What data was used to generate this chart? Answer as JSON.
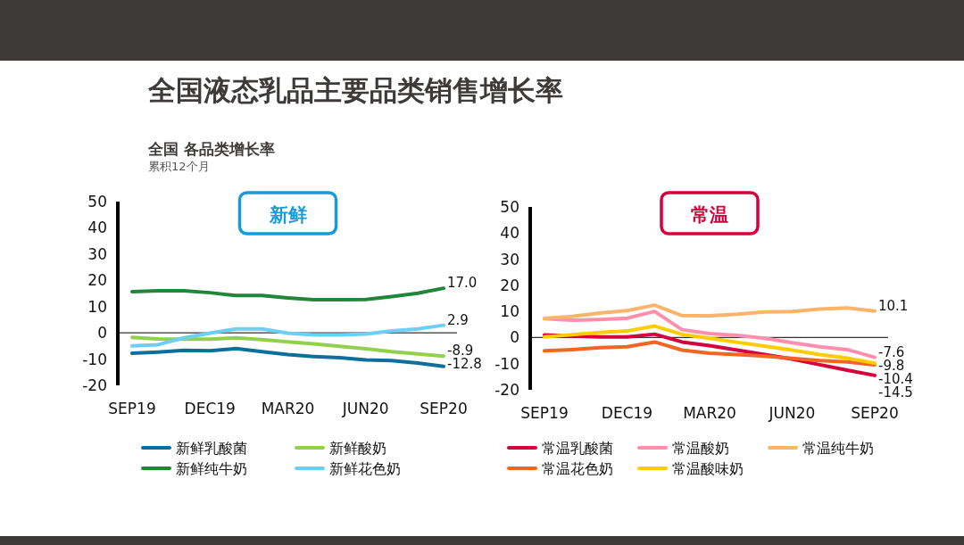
{
  "chart_data": [
    {
      "type": "line",
      "title": "新鲜",
      "categories": [
        "SEP19",
        null,
        null,
        "DEC19",
        null,
        null,
        "MAR20",
        null,
        null,
        "JUN20",
        null,
        null,
        "SEP20"
      ],
      "series": [
        {
          "name": "新鲜乳酸菌",
          "color": "#0e6f9a",
          "values": [
            -7.8,
            -7.3,
            -6.7,
            -6.8,
            -6.0,
            -7.2,
            -8.3,
            -9.0,
            -9.5,
            -10.3,
            -10.6,
            -11.5,
            -12.8
          ]
        },
        {
          "name": "新鲜酸奶",
          "color": "#92d050",
          "values": [
            -1.7,
            -2.3,
            -2.4,
            -2.4,
            -1.9,
            -2.6,
            -3.4,
            -4.2,
            -5.1,
            -6.1,
            -7.2,
            -8.0,
            -8.9
          ]
        },
        {
          "name": "新鲜纯牛奶",
          "color": "#22863a",
          "values": [
            15.7,
            16.0,
            16.0,
            15.3,
            14.2,
            14.2,
            13.3,
            12.6,
            12.6,
            12.7,
            13.8,
            15.1,
            17.0
          ]
        },
        {
          "name": "新鲜花色奶",
          "color": "#6dcff6",
          "values": [
            -5.0,
            -4.5,
            -1.9,
            -0.1,
            1.5,
            1.5,
            -0.1,
            -0.8,
            -0.8,
            -0.5,
            0.7,
            1.5,
            2.9
          ]
        }
      ],
      "ylim": [
        -20,
        50
      ],
      "yticks": [
        -20,
        -10,
        0,
        10,
        20,
        30,
        40,
        50
      ],
      "legend": "bottom",
      "ref_lines": [
        {
          "axis": "y",
          "value": 0
        }
      ],
      "annotations": [
        "全国液态乳品主要品类销售增长率",
        "全国 各品类增长率",
        "累积12个月",
        {
          "text": "17.0",
          "x": "SEP20",
          "y": 17.0
        },
        {
          "text": "2.9",
          "x": "SEP20",
          "y": 2.9
        },
        {
          "text": "-8.9",
          "x": "SEP20",
          "y": -8.9
        },
        {
          "text": "-12.8",
          "x": "SEP20",
          "y": -12.8
        }
      ]
    },
    {
      "type": "line",
      "title": "常温",
      "categories": [
        "SEP19",
        null,
        null,
        "DEC19",
        null,
        null,
        "MAR20",
        null,
        null,
        "JUN20",
        null,
        null,
        "SEP20"
      ],
      "series": [
        {
          "name": "常温乳酸菌",
          "color": "#d6003c",
          "values": [
            1.0,
            0.6,
            0.2,
            0.2,
            1.3,
            -1.7,
            -3.1,
            -4.8,
            -6.5,
            -8.2,
            -10.4,
            -12.5,
            -14.5
          ]
        },
        {
          "name": "常温酸奶",
          "color": "#ff8fab",
          "values": [
            7.2,
            6.6,
            6.9,
            7.4,
            10.0,
            3.0,
            1.5,
            0.8,
            -0.3,
            -2.0,
            -3.5,
            -4.6,
            -7.6
          ]
        },
        {
          "name": "常温纯牛奶",
          "color": "#fbb46a",
          "values": [
            7.3,
            8.1,
            9.4,
            10.3,
            12.4,
            8.4,
            8.3,
            8.9,
            9.8,
            10.0,
            10.9,
            11.3,
            10.1
          ]
        },
        {
          "name": "常温花色奶",
          "color": "#f26522",
          "values": [
            -5.1,
            -4.6,
            -3.9,
            -3.5,
            -1.7,
            -4.8,
            -6.0,
            -6.5,
            -7.1,
            -8.0,
            -8.8,
            -9.3,
            -10.4
          ]
        },
        {
          "name": "常温酸味奶",
          "color": "#ffcc00",
          "values": [
            0.2,
            1.1,
            1.9,
            2.5,
            4.4,
            1.2,
            -0.3,
            -1.8,
            -3.3,
            -4.8,
            -6.5,
            -7.9,
            -9.8
          ]
        }
      ],
      "ylim": [
        -20,
        50
      ],
      "yticks": [
        -20,
        -10,
        0,
        10,
        20,
        30,
        40,
        50
      ],
      "legend": "bottom",
      "ref_lines": [
        {
          "axis": "y",
          "value": 0
        }
      ],
      "annotations": [
        {
          "text": "10.1",
          "x": "SEP20",
          "y": 10.1
        },
        {
          "text": "-7.6",
          "x": "SEP20",
          "y": -7.6
        },
        {
          "text": "-9.8",
          "x": "SEP20",
          "y": -9.8
        },
        {
          "text": "-10.4",
          "x": "SEP20",
          "y": -10.4
        },
        {
          "text": "-14.5",
          "x": "SEP20",
          "y": -14.5
        }
      ]
    }
  ]
}
